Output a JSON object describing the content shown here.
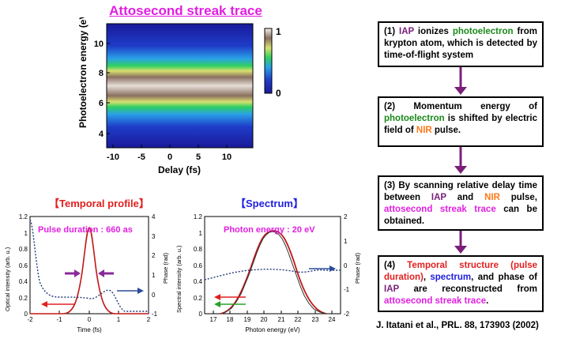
{
  "streak": {
    "title": "Attosecond streak trace",
    "ylabel": "Photoelectron energy (eV)",
    "xlabel": "Delay (fs)",
    "xticks": [
      "-10",
      "-5",
      "0",
      "5",
      "10"
    ],
    "yticks": [
      "4",
      "6",
      "8",
      "10"
    ],
    "colorbar_ticks": [
      "1",
      "0"
    ]
  },
  "temporal": {
    "title": "【Temporal profile】",
    "annotation": "Pulse duration : 660 as",
    "ylabel_left": "Optical intensity (arb. u.)",
    "ylabel_right": "Phase (rad)",
    "xlabel": "Time (fs)",
    "xticks": [
      "-2",
      "-1",
      "0",
      "1",
      "2"
    ],
    "yticks_left": [
      "0",
      "0.2",
      "0.4",
      "0.6",
      "0.8",
      "1",
      "1.2"
    ],
    "yticks_right": [
      "-1",
      "0",
      "1",
      "2",
      "3",
      "4"
    ]
  },
  "spectrum": {
    "title": "【Spectrum】",
    "annotation": "Photon energy : 20 eV",
    "ylabel_left": "Spectral intensity (arb. u.)",
    "ylabel_right": "Phase (rad)",
    "xlabel": "Photon energy (eV)",
    "xticks": [
      "17",
      "18",
      "19",
      "20",
      "21",
      "22",
      "23",
      "24"
    ],
    "yticks_left": [
      "0",
      "0.2",
      "0.4",
      "0.6",
      "0.8",
      "1",
      "1.2"
    ],
    "yticks_right": [
      "-2",
      "-1",
      "0",
      "1",
      "2"
    ]
  },
  "steps": {
    "s1": {
      "a": "(1) ",
      "b": "IAP",
      "c": " ionizes ",
      "d": "photoelectron",
      "e": " from krypton atom, which is detected by time-of-flight system"
    },
    "s2": {
      "a": "(2) Momentum energy of ",
      "b": "photoelectron",
      "c": " is shifted by electric field of ",
      "d": "NIR",
      "e": " pulse."
    },
    "s3": {
      "a": "(3) By scanning relative delay time between ",
      "b": "IAP",
      "c": " and ",
      "d": "NIR",
      "e": " pulse, ",
      "f": "attosecond streak trace",
      "g": " can be obtained."
    },
    "s4": {
      "a": "(4) ",
      "b": "Temporal structure (pulse duration)",
      "c": ", ",
      "d": "spectrum",
      "e": ", and phase of ",
      "f": "IAP",
      "g": " are reconstructed from ",
      "h": "attosecond streak trace",
      "i": "."
    }
  },
  "citation": "J. Itatani et al., PRL. 88, 173903 (2002)",
  "colors": {
    "purple": "#7a1f7a",
    "magenta": "#e020e0",
    "red": "#e02020",
    "blue": "#2020e0",
    "arrow": "#7a1f7a"
  }
}
